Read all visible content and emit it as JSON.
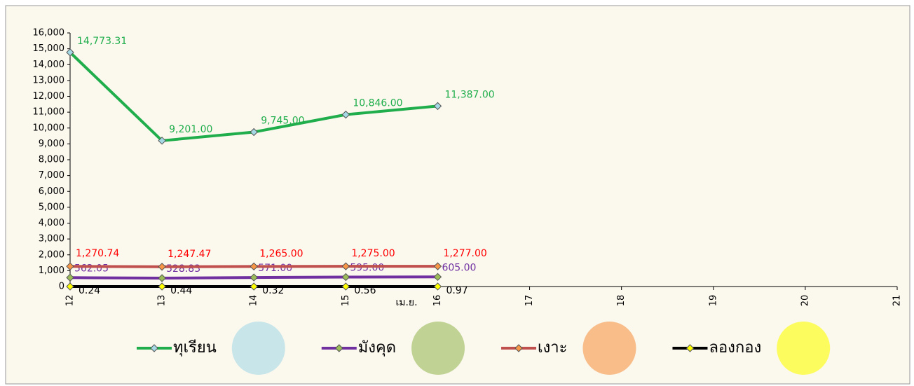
{
  "chart_data": {
    "type": "line",
    "x_label": "เม.ย.",
    "x": [
      12,
      13,
      14,
      15,
      16
    ],
    "xlim": [
      12,
      21
    ],
    "xticks": [
      12,
      13,
      14,
      15,
      16,
      17,
      18,
      19,
      20,
      21
    ],
    "ylim": [
      0,
      16000
    ],
    "yticks": [
      0,
      {
        "value": 1000,
        "label": "1,000"
      },
      {
        "value": 2000,
        "label": "2,000"
      },
      {
        "value": 3000,
        "label": "3,000"
      },
      {
        "value": 4000,
        "label": "4,000"
      },
      {
        "value": 5000,
        "label": "5,000"
      },
      {
        "value": 6000,
        "label": "6,000"
      },
      {
        "value": 7000,
        "label": "7,000"
      },
      {
        "value": 8000,
        "label": "8,000"
      },
      {
        "value": 9000,
        "label": "9,000"
      },
      {
        "value": 10000,
        "label": "10,000"
      },
      {
        "value": 11000,
        "label": "11,000"
      },
      {
        "value": 12000,
        "label": "12,000"
      },
      {
        "value": 13000,
        "label": "13,000"
      },
      {
        "value": 14000,
        "label": "14,000"
      },
      {
        "value": 15000,
        "label": "15,000"
      },
      {
        "value": 16000,
        "label": "16,000"
      }
    ],
    "series": [
      {
        "name": "ทุเรียน",
        "color": "#1fae4b",
        "marker_color": "#a6d9e6",
        "label_color": "#1fae4b",
        "values": [
          14773.31,
          9201,
          9745,
          10846,
          11387
        ],
        "value_labels": [
          "14,773.31",
          "9,201.00",
          "9,745.00",
          "10,846.00",
          "11,387.00"
        ]
      },
      {
        "name": "มังคุด",
        "color": "#7030a0",
        "marker_color": "#9bbb59",
        "label_color": "#7030a0",
        "values": [
          562.05,
          528.83,
          571,
          595,
          605
        ],
        "value_labels": [
          "562.05",
          "528.83",
          "571.00",
          "595.00",
          "605.00"
        ]
      },
      {
        "name": "เงาะ",
        "color": "#c0504d",
        "marker_color": "#f79646",
        "label_color": "#ff0000",
        "values": [
          1270.74,
          1247.47,
          1265,
          1275,
          1277
        ],
        "value_labels": [
          "1,270.74",
          "1,247.47",
          "1,265.00",
          "1,275.00",
          "1,277.00"
        ]
      },
      {
        "name": "ลองกอง",
        "color": "#000000",
        "marker_color": "#ffff00",
        "label_color": "#000000",
        "values": [
          0.24,
          0.44,
          0.32,
          0.56,
          0.97
        ]
      }
    ]
  }
}
